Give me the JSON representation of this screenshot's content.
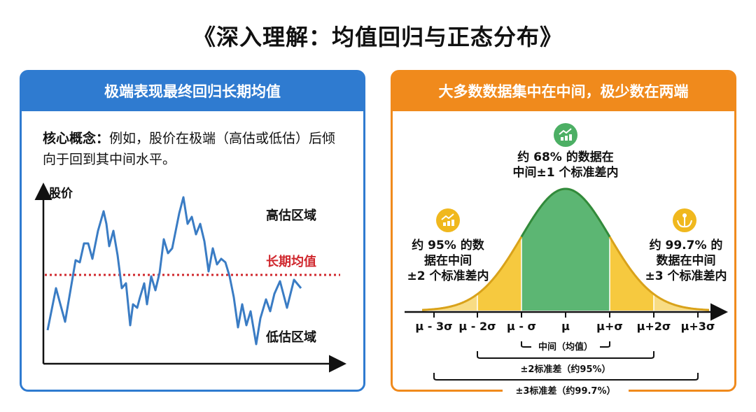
{
  "title": "《深入理解：均值回归与正态分布》",
  "left": {
    "header": "极端表现最终回归长期均值",
    "concept_label": "核心概念：",
    "concept_text": "例如，股价在极端（高估或低估）后倾向于回到其中间水平。",
    "y_axis": "股价",
    "high_zone": "高估区域",
    "mean_line": "长期均值",
    "low_zone": "低估区域",
    "colors": {
      "line": "#3a7cc4",
      "mean": "#d0282e"
    }
  },
  "right": {
    "header": "大多数数据集中在中间，极少数在两端",
    "center_note": [
      "约 68% 的数据在",
      "中间±1 个标准差内"
    ],
    "left_note": [
      "约 95% 的数",
      "据在中间",
      "±2 个标准差内"
    ],
    "right_note": [
      "约 99.7% 的",
      "数据在中间",
      "±3 个标准差内"
    ],
    "ticks": [
      "μ - 3σ",
      "μ - 2σ",
      "μ - σ",
      "μ",
      "μ+σ",
      "μ+2σ",
      "μ+3σ"
    ],
    "bracket1": "中间（均值）",
    "bracket2": "±2标准差（约95%）",
    "bracket3": "±3标准差（约99.7%）",
    "icons": [
      "chart-growth-icon",
      "chart-growth-icon",
      "hands-plant-icon"
    ],
    "colors": {
      "green": "#5cb673",
      "green_line": "#2e8b3e",
      "yellow": "#f6c93f",
      "light_yellow": "#f8dc84",
      "curve": "#d9a21a"
    }
  }
}
